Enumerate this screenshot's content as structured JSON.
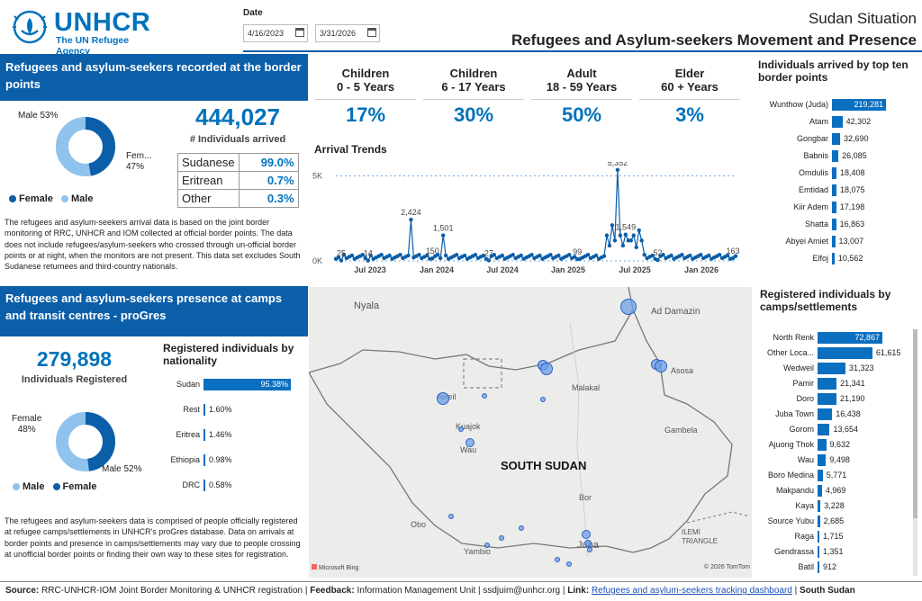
{
  "brand": {
    "name": "UNHCR",
    "tagline": "The UN Refugee Agency"
  },
  "date": {
    "label": "Date",
    "start": "4/16/2023",
    "end": "3/31/2026"
  },
  "header": {
    "situation": "Sudan Situation",
    "title": "Refugees and Asylum-seekers Movement and Presence"
  },
  "border": {
    "section_title": "Refugees and asylum-seekers recorded at the border points",
    "total": "444,027",
    "total_label": "# Individuals arrived",
    "gender": {
      "male_label": "Male 53%",
      "female_label_line1": "Fem...",
      "female_label_line2": "47%",
      "legend_female": "Female",
      "legend_male": "Male",
      "female_pct": 47,
      "male_pct": 53
    },
    "nationality": [
      {
        "name": "Sudanese",
        "value": "99.0%"
      },
      {
        "name": "Eritrean",
        "value": "0.7%"
      },
      {
        "name": "Other",
        "value": "0.3%"
      }
    ],
    "note": "The refugees and asylum-seekers arrival data is based on the joint border monitoring of RRC, UNHCR and IOM collected at official border points. The data does not include refugees/asylum-seekers who crossed through un-official border points or at night, when the monitors are not present. This data set excludes South Sudanese returnees and third-country nationals."
  },
  "age_groups": [
    {
      "line1": "Children",
      "line2": "0 - 5 Years",
      "value": "17%"
    },
    {
      "line1": "Children",
      "line2": "6 - 17 Years",
      "value": "30%"
    },
    {
      "line1": "Adult",
      "line2": "18 - 59 Years",
      "value": "50%"
    },
    {
      "line1": "Elder",
      "line2": "60 + Years",
      "value": "3%"
    }
  ],
  "trend": {
    "title": "Arrival Trends"
  },
  "chart_data": [
    {
      "type": "line",
      "title": "Arrival Trends",
      "x_ticks": [
        "Jul 2023",
        "Jan 2024",
        "Jul 2024",
        "Jan 2025",
        "Jul 2025",
        "Jan 2026"
      ],
      "y_ticks": [
        "0K",
        "5K"
      ],
      "ylim": [
        0,
        5500
      ],
      "grid": true,
      "point_labels": [
        "25",
        "14",
        "2,424",
        "150",
        "1,501",
        "27",
        "99",
        "5,352",
        "1,549",
        "52",
        "163"
      ]
    },
    {
      "type": "bar",
      "title": "Individuals arrived by top ten border points",
      "categories": [
        "Wunthow (Juda)",
        "Atam",
        "Gongbar",
        "Babnis",
        "Omdulis",
        "Emtidad",
        "Kiir Adem",
        "Shatta",
        "Abyei Amiet",
        "Elfoj"
      ],
      "values": [
        219281,
        42302,
        32690,
        26085,
        18408,
        18075,
        17198,
        16863,
        13007,
        10562
      ],
      "labels": [
        "219,281",
        "42,302",
        "32,690",
        "26,085",
        "18,408",
        "18,075",
        "17,198",
        "16,863",
        "13,007",
        "10,562"
      ]
    },
    {
      "type": "bar",
      "title": "Registered individuals by nationality",
      "categories": [
        "Sudan",
        "Rest",
        "Eritrea",
        "Ethiopia",
        "DRC"
      ],
      "values": [
        95.38,
        1.6,
        1.46,
        0.98,
        0.58
      ],
      "labels": [
        "95.38%",
        "1.60%",
        "1.46%",
        "0.98%",
        "0.58%"
      ]
    },
    {
      "type": "bar",
      "title": "Registered individuals by camps/settlements",
      "categories": [
        "North Renk",
        "Other Loca...",
        "Wedweil",
        "Pamir",
        "Doro",
        "Juba Town",
        "Gorom",
        "Ajuong Thok",
        "Wau",
        "Boro Medina",
        "Makpandu",
        "Kaya",
        "Source Yubu",
        "Raga",
        "Gendrassa",
        "Batil"
      ],
      "values": [
        72867,
        61615,
        31323,
        21341,
        21190,
        16438,
        13654,
        9632,
        9498,
        5771,
        4969,
        3228,
        2685,
        1715,
        1351,
        912
      ],
      "labels": [
        "72,867",
        "61,615",
        "31,323",
        "21,341",
        "21,190",
        "16,438",
        "13,654",
        "9,632",
        "9,498",
        "5,771",
        "4,969",
        "3,228",
        "2,685",
        "1,715",
        "1,351",
        "912"
      ]
    }
  ],
  "top_border": {
    "title": "Individuals arrived by top ten border points"
  },
  "presence": {
    "section_title": "Refugees and asylum-seekers presence at camps and transit centres - proGres",
    "total": "279,898",
    "total_label": "Individuals Registered",
    "gender": {
      "female_label_line1": "Female",
      "female_label_line2": "48%",
      "male_label": "Male 52%",
      "legend_male": "Male",
      "legend_female": "Female",
      "female_pct": 48,
      "male_pct": 52
    },
    "nat_title": "Registered individuals by nationality",
    "note": "The refugees and asylum-seekers data is comprised of people officially registered at refugee camps/settlements in UNHCR's proGres database. Data on arrivals at border points and presence in camps/settlements may vary due to people crossing at unofficial border points or finding their own way to these sites for registration."
  },
  "camps": {
    "title": "Registered individuals by camps/settlements"
  },
  "map": {
    "country": "SOUTH SUDAN",
    "cities": [
      "Nyala",
      "Ad Damazin",
      "Asosa",
      "Malakal",
      "Aweil",
      "Kuajok",
      "Wau",
      "Gambela",
      "Bor",
      "Obo",
      "Yambio",
      "Juba",
      "ILEMI TRIANGLE"
    ],
    "attribution_left": "Microsoft Bing",
    "attribution_right": "© 2026 TomTom"
  },
  "footer": {
    "source_label": "Source:",
    "source_text": "RRC-UNHCR-IOM Joint Border Monitoring & UNHCR registration | ",
    "feedback_label": "Feedback:",
    "feedback_text": "Information Management Unit | ssdjuim@unhcr.org | ",
    "link_label": "Link:",
    "link_text": "Refugees and asylum-seekers tracking dashboard",
    "sep": " | ",
    "country": "South Sudan"
  }
}
